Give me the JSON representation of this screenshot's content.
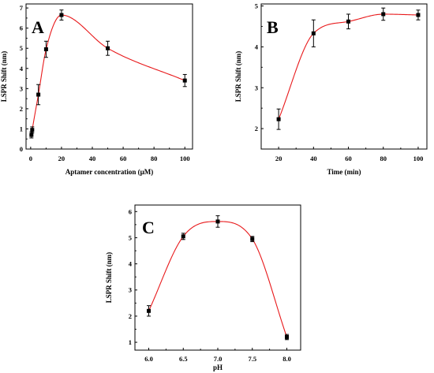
{
  "chart_data": [
    {
      "panel": "A",
      "type": "scatter",
      "xlabel": "Aptamer concentration (μM)",
      "ylabel": "LSPR Shift (nm)",
      "xlim": [
        -3,
        105
      ],
      "ylim": [
        0,
        7.2
      ],
      "xticks": [
        0,
        20,
        40,
        60,
        80,
        100
      ],
      "yticks": [
        0,
        1,
        2,
        3,
        4,
        5,
        6,
        7
      ],
      "x": [
        0.5,
        1,
        5,
        10,
        20,
        50,
        100
      ],
      "y": [
        0.7,
        0.95,
        2.7,
        4.95,
        6.65,
        5.0,
        3.4
      ],
      "error": [
        0.15,
        0.15,
        0.5,
        0.4,
        0.25,
        0.35,
        0.3
      ],
      "fit_curve": true,
      "marker_color": "#000000",
      "curve_color": "#e8191b"
    },
    {
      "panel": "B",
      "type": "scatter",
      "xlabel": "Time (min)",
      "ylabel": "LSPR Shift (nm)",
      "xlim": [
        10,
        105
      ],
      "ylim": [
        1.5,
        5.05
      ],
      "xticks": [
        20,
        40,
        60,
        80,
        100
      ],
      "yticks": [
        2,
        3,
        4,
        5
      ],
      "x": [
        20,
        40,
        60,
        80,
        100
      ],
      "y": [
        2.23,
        4.33,
        4.62,
        4.8,
        4.78
      ],
      "error": [
        0.25,
        0.33,
        0.18,
        0.15,
        0.12
      ],
      "fit_curve": true,
      "marker_color": "#000000",
      "curve_color": "#e8191b"
    },
    {
      "panel": "C",
      "type": "scatter",
      "xlabel": "pH",
      "ylabel": "LSPR Shift (nm)",
      "xlim": [
        5.8,
        8.2
      ],
      "ylim": [
        0.7,
        6.25
      ],
      "xticks": [
        6.0,
        6.5,
        7.0,
        7.5,
        8.0
      ],
      "yticks": [
        1,
        2,
        3,
        4,
        5,
        6
      ],
      "x": [
        6.0,
        6.5,
        7.0,
        7.5,
        8.0
      ],
      "y": [
        2.2,
        5.05,
        5.62,
        4.95,
        1.2
      ],
      "error": [
        0.2,
        0.12,
        0.22,
        0.1,
        0.1
      ],
      "fit_curve": true,
      "marker_color": "#000000",
      "curve_color": "#e8191b"
    }
  ]
}
